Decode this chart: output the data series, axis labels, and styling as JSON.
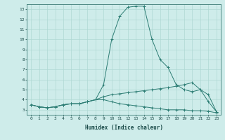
{
  "xlabel": "Humidex (Indice chaleur)",
  "background_color": "#ceecea",
  "grid_color": "#afd8d4",
  "line_color": "#2d7d74",
  "xlim": [
    -0.5,
    23.5
  ],
  "ylim": [
    2.5,
    13.5
  ],
  "yticks": [
    3,
    4,
    5,
    6,
    7,
    8,
    9,
    10,
    11,
    12,
    13
  ],
  "xticks": [
    0,
    1,
    2,
    3,
    4,
    5,
    6,
    7,
    8,
    9,
    10,
    11,
    12,
    13,
    14,
    15,
    16,
    17,
    18,
    19,
    20,
    21,
    22,
    23
  ],
  "series1_x": [
    0,
    1,
    2,
    3,
    4,
    5,
    6,
    7,
    8,
    9,
    10,
    11,
    12,
    13,
    14,
    15,
    16,
    17,
    18,
    19,
    20,
    21,
    22,
    23
  ],
  "series1_y": [
    3.5,
    3.3,
    3.2,
    3.3,
    3.5,
    3.6,
    3.6,
    3.8,
    4.0,
    5.5,
    10.0,
    12.3,
    13.2,
    13.3,
    13.3,
    10.0,
    8.0,
    7.2,
    5.5,
    5.0,
    4.8,
    5.0,
    3.8,
    2.8
  ],
  "series2_x": [
    0,
    1,
    2,
    3,
    4,
    5,
    6,
    7,
    8,
    9,
    10,
    11,
    12,
    13,
    14,
    15,
    16,
    17,
    18,
    19,
    20,
    21,
    22,
    23
  ],
  "series2_y": [
    3.5,
    3.3,
    3.2,
    3.3,
    3.5,
    3.6,
    3.6,
    3.8,
    4.0,
    4.3,
    4.5,
    4.6,
    4.7,
    4.8,
    4.9,
    5.0,
    5.1,
    5.2,
    5.35,
    5.5,
    5.7,
    5.0,
    4.5,
    2.8
  ],
  "series3_x": [
    0,
    1,
    2,
    3,
    4,
    5,
    6,
    7,
    8,
    9,
    10,
    11,
    12,
    13,
    14,
    15,
    16,
    17,
    18,
    19,
    20,
    21,
    22,
    23
  ],
  "series3_y": [
    3.5,
    3.3,
    3.2,
    3.3,
    3.5,
    3.6,
    3.6,
    3.8,
    4.0,
    4.0,
    3.8,
    3.6,
    3.5,
    3.4,
    3.3,
    3.2,
    3.1,
    3.0,
    3.0,
    3.0,
    2.9,
    2.9,
    2.85,
    2.7
  ]
}
